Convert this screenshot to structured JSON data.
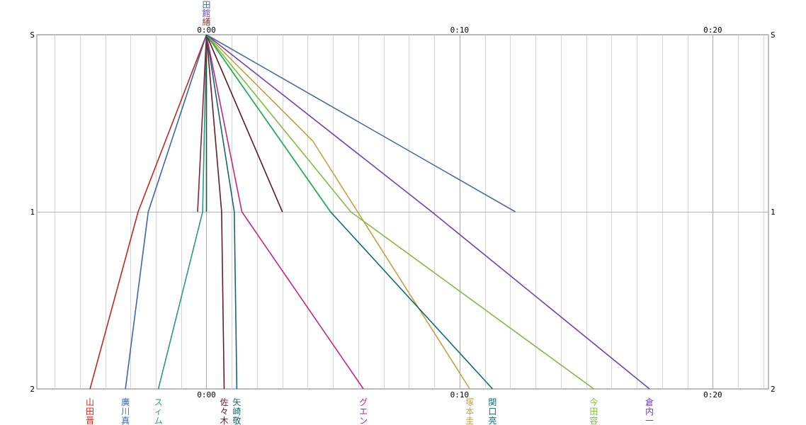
{
  "chart_data": {
    "type": "line",
    "x_unit": "minutes",
    "xlim": [
      -6.7,
      22.2
    ],
    "x_ticks": [
      {
        "value": 0,
        "label": "0:00"
      },
      {
        "value": 10,
        "label": "0:10"
      },
      {
        "value": 20,
        "label": "0:20"
      }
    ],
    "y_ticks": [
      {
        "value": 0,
        "label": "S"
      },
      {
        "value": 1,
        "label": "1"
      },
      {
        "value": 2,
        "label": "2"
      }
    ],
    "ylim": [
      0,
      2
    ],
    "grid": true,
    "series": [
      {
        "name": "山田晋",
        "color": "#c0281c",
        "points": [
          [
            0,
            0
          ],
          [
            -2.7,
            1
          ],
          [
            -4.6,
            2
          ]
        ]
      },
      {
        "name": "廣川真",
        "color": "#3c64b4",
        "points": [
          [
            0,
            0
          ],
          [
            -2.3,
            1
          ],
          [
            -3.2,
            2
          ]
        ]
      },
      {
        "name": "スィム",
        "color": "#2a9a84",
        "points": [
          [
            0,
            0
          ],
          [
            -0.15,
            1
          ],
          [
            -1.9,
            2
          ]
        ]
      },
      {
        "name": "佐々木",
        "color": "#6a1a2a",
        "points": [
          [
            0,
            0
          ],
          [
            0.6,
            1
          ],
          [
            0.7,
            2
          ]
        ]
      },
      {
        "name": "矢崎敬",
        "color": "#136870",
        "points": [
          [
            0,
            0
          ],
          [
            1.1,
            1
          ],
          [
            1.2,
            2
          ]
        ]
      },
      {
        "name": "グエン",
        "color": "#c02882",
        "points": [
          [
            0,
            0
          ],
          [
            1.4,
            1
          ],
          [
            6.2,
            2
          ]
        ]
      },
      {
        "name": "塚本圭",
        "color": "#c4a040",
        "points": [
          [
            0,
            0
          ],
          [
            4.2,
            0.6
          ],
          [
            10.4,
            2
          ]
        ]
      },
      {
        "name": "関口亮",
        "color": "#106a74",
        "points": [
          [
            0,
            0
          ],
          [
            4.9,
            1
          ],
          [
            11.3,
            2
          ]
        ]
      },
      {
        "name": "今田容",
        "color": "#80bc40",
        "points": [
          [
            0,
            0
          ],
          [
            5.7,
            1
          ],
          [
            15.3,
            2
          ]
        ]
      },
      {
        "name": "倉内一",
        "color": "#7040b4",
        "points": [
          [
            0,
            0
          ],
          [
            8.9,
            1
          ],
          [
            17.5,
            2
          ]
        ]
      },
      {
        "name": "",
        "color": "#4a6aa8",
        "points": [
          [
            0,
            0
          ],
          [
            12.2,
            1
          ]
        ]
      },
      {
        "name": "",
        "color": "#5a1a20",
        "points": [
          [
            0,
            0
          ],
          [
            3.0,
            1
          ]
        ]
      },
      {
        "name": "",
        "color": "#24b050",
        "points": [
          [
            0,
            0
          ],
          [
            4.9,
            1
          ]
        ]
      },
      {
        "name": "",
        "color": "#90203a",
        "points": [
          [
            0,
            0
          ],
          [
            -0.35,
            1
          ]
        ]
      },
      {
        "name": "",
        "color": "#1a5a30",
        "points": [
          [
            0,
            0
          ],
          [
            0,
            1
          ]
        ]
      }
    ],
    "bottom_labels": [
      {
        "x": -4.6,
        "text": "山田晋",
        "color": "#c0281c"
      },
      {
        "x": -3.2,
        "text": "廣川真",
        "color": "#3c64b4"
      },
      {
        "x": -1.9,
        "text": "スィム",
        "color": "#2a9a84"
      },
      {
        "x": 0.7,
        "text": "佐々木",
        "color": "#6a1a2a"
      },
      {
        "x": 1.2,
        "text": "矢崎敬",
        "color": "#136870"
      },
      {
        "x": 6.2,
        "text": "グエン",
        "color": "#c02882"
      },
      {
        "x": 10.4,
        "text": "塚本圭",
        "color": "#c4a040"
      },
      {
        "x": 11.3,
        "text": "関口亮",
        "color": "#106a74"
      },
      {
        "x": 15.3,
        "text": "今田容",
        "color": "#80bc40"
      },
      {
        "x": 17.5,
        "text": "倉内一",
        "color": "#7040b4"
      }
    ],
    "top_labels": [
      {
        "text": "田",
        "color": "#3c64b4"
      },
      {
        "text": "館",
        "color": "#7040b4"
      },
      {
        "text": "繕",
        "color": "#c0281c"
      }
    ]
  }
}
